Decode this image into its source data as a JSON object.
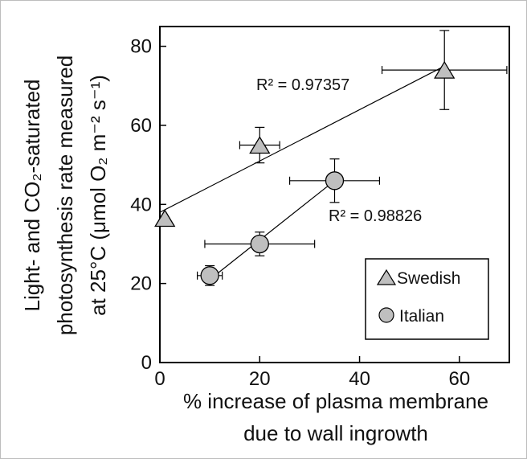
{
  "chart_data": {
    "type": "scatter",
    "xlabel_lines": [
      "% increase of plasma membrane",
      "due to wall ingrowth"
    ],
    "ylabel_lines": [
      "Light- and CO₂-saturated",
      "photosynthesis rate measured",
      "at 25°C (μmol O₂ m⁻² s⁻¹)"
    ],
    "xlim": [
      0,
      70
    ],
    "ylim": [
      0,
      85
    ],
    "x_ticks": [
      0,
      20,
      40,
      60
    ],
    "y_ticks": [
      0,
      20,
      40,
      60,
      80
    ],
    "grid": false,
    "legend_position": "bottom-right",
    "series": [
      {
        "name": "Swedish",
        "marker": "triangle",
        "color": "#bfbfbf",
        "points": [
          {
            "x": 1,
            "y": 36.5,
            "xerr": 0,
            "yerr": 0
          },
          {
            "x": 20,
            "y": 55,
            "xerr": 4,
            "yerr": 4.5
          },
          {
            "x": 57,
            "y": 74,
            "xerr": 12.5,
            "yerr": 10
          }
        ],
        "trendline": {
          "x": [
            0,
            57
          ],
          "y": [
            38,
            75
          ]
        },
        "r2_label": "R² = 0.97357"
      },
      {
        "name": "Italian",
        "marker": "circle",
        "color": "#bfbfbf",
        "points": [
          {
            "x": 10,
            "y": 22,
            "xerr": 2.5,
            "yerr": 2.5
          },
          {
            "x": 20,
            "y": 30,
            "xerr": 11,
            "yerr": 3
          },
          {
            "x": 35,
            "y": 46,
            "xerr": 9,
            "yerr": 5.5
          }
        ],
        "trendline": {
          "x": [
            10,
            35
          ],
          "y": [
            21,
            46
          ]
        },
        "r2_label": "R² = 0.98826"
      }
    ]
  }
}
